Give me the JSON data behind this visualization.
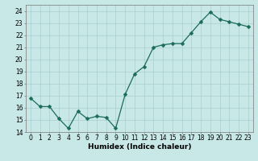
{
  "x": [
    0,
    1,
    2,
    3,
    4,
    5,
    6,
    7,
    8,
    9,
    10,
    11,
    12,
    13,
    14,
    15,
    16,
    17,
    18,
    19,
    20,
    21,
    22,
    23
  ],
  "y": [
    16.8,
    16.1,
    16.1,
    15.1,
    14.3,
    15.7,
    15.1,
    15.3,
    15.2,
    14.3,
    17.1,
    18.8,
    19.4,
    21.0,
    21.2,
    21.3,
    21.3,
    22.2,
    23.1,
    23.9,
    23.3,
    23.1,
    22.9,
    22.7
  ],
  "line_color": "#1a6b5a",
  "marker": "D",
  "marker_size": 2.5,
  "bg_color": "#c8e8e8",
  "grid_color": "#aacece",
  "xlabel": "Humidex (Indice chaleur)",
  "xlim": [
    -0.5,
    23.5
  ],
  "ylim": [
    14,
    24.5
  ],
  "yticks": [
    14,
    15,
    16,
    17,
    18,
    19,
    20,
    21,
    22,
    23,
    24
  ],
  "xticks": [
    0,
    1,
    2,
    3,
    4,
    5,
    6,
    7,
    8,
    9,
    10,
    11,
    12,
    13,
    14,
    15,
    16,
    17,
    18,
    19,
    20,
    21,
    22,
    23
  ],
  "tick_fontsize": 5.5,
  "xlabel_fontsize": 6.5
}
